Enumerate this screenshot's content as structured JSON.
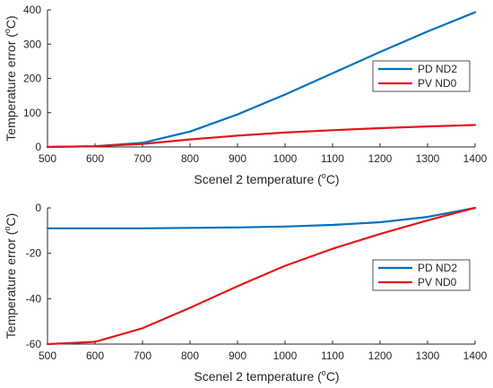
{
  "chart_data": [
    {
      "type": "line",
      "xlabel": "Scenel 2 temperature (",
      "xlabel_unit_sup": "o",
      "xlabel_unit": "C)",
      "ylabel": "Temperature error (",
      "ylabel_unit_sup": "o",
      "ylabel_unit": "C)",
      "xlim": [
        500,
        1400
      ],
      "ylim": [
        0,
        400
      ],
      "xticks": [
        500,
        600,
        700,
        800,
        900,
        1000,
        1100,
        1200,
        1300,
        1400
      ],
      "yticks": [
        0,
        100,
        200,
        300,
        400
      ],
      "grid": false,
      "legend_position": "center-right",
      "x": [
        500,
        600,
        700,
        800,
        900,
        1000,
        1100,
        1200,
        1300,
        1400
      ],
      "series": [
        {
          "name": "PD ND2",
          "color": "#0072BD",
          "values": [
            0,
            2,
            12,
            45,
            95,
            153,
            215,
            277,
            337,
            393
          ]
        },
        {
          "name": "PV ND0",
          "color": "#E3161C",
          "values": [
            0,
            2,
            9,
            22,
            33,
            42,
            49,
            55,
            60,
            64
          ]
        }
      ]
    },
    {
      "type": "line",
      "xlabel": "Scenel 2 temperature (",
      "xlabel_unit_sup": "o",
      "xlabel_unit": "C)",
      "ylabel": "Temperature error (",
      "ylabel_unit_sup": "o",
      "ylabel_unit": "C)",
      "xlim": [
        500,
        1400
      ],
      "ylim": [
        -60,
        0
      ],
      "xticks": [
        500,
        600,
        700,
        800,
        900,
        1000,
        1100,
        1200,
        1300,
        1400
      ],
      "yticks": [
        -60,
        -40,
        -20,
        0
      ],
      "grid": false,
      "legend_position": "center-right",
      "x": [
        500,
        600,
        700,
        800,
        900,
        1000,
        1100,
        1200,
        1300,
        1400
      ],
      "series": [
        {
          "name": "PD ND2",
          "color": "#0072BD",
          "values": [
            -9,
            -9,
            -9,
            -8.8,
            -8.6,
            -8.2,
            -7.5,
            -6.3,
            -4,
            0
          ]
        },
        {
          "name": "PV ND0",
          "color": "#E3161C",
          "values": [
            -60,
            -59,
            -53,
            -44,
            -34.5,
            -25.5,
            -18,
            -11.5,
            -5.5,
            0
          ]
        }
      ]
    }
  ]
}
